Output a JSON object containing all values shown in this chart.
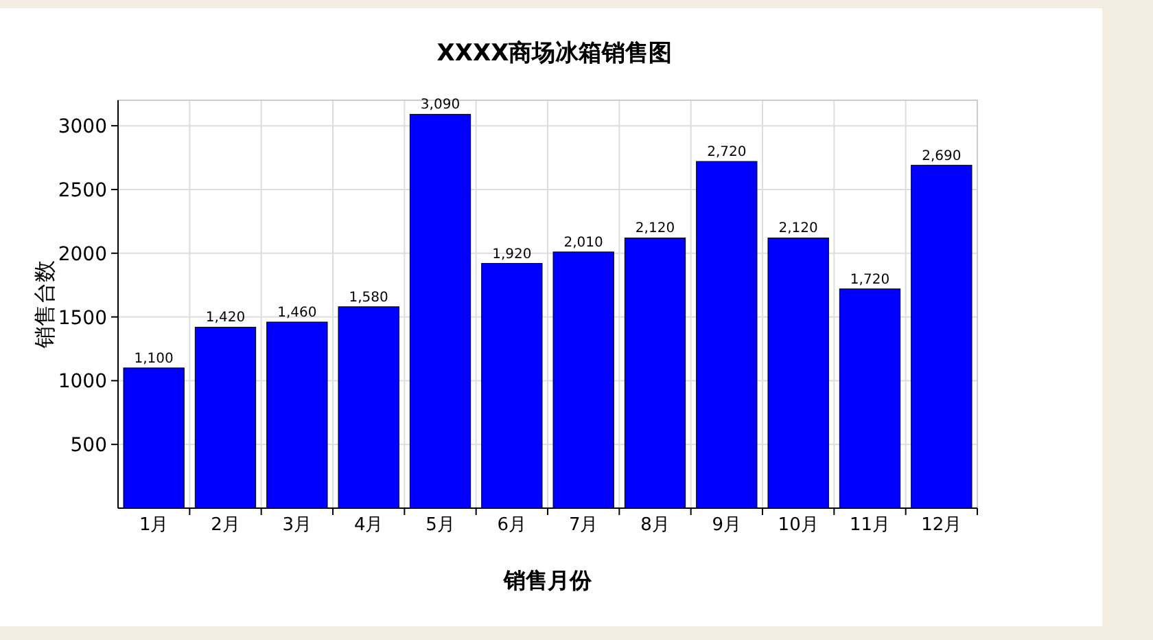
{
  "chart_data": {
    "type": "bar",
    "title": "XXXX商场冰箱销售图",
    "xlabel": "销售月份",
    "ylabel": "销售台数",
    "categories": [
      "1月",
      "2月",
      "3月",
      "4月",
      "5月",
      "6月",
      "7月",
      "8月",
      "9月",
      "10月",
      "11月",
      "12月"
    ],
    "values": [
      1100,
      1420,
      1460,
      1580,
      3090,
      1920,
      2010,
      2120,
      2720,
      2120,
      1720,
      2690
    ],
    "value_labels": [
      "1,100",
      "1,420",
      "1,460",
      "1,580",
      "3,090",
      "1,920",
      "2,010",
      "2,120",
      "2,720",
      "2,120",
      "1,720",
      "2,690"
    ],
    "color": "#0000ff",
    "grid": true,
    "ylim": [
      0,
      3200
    ],
    "yticks": [
      500,
      1000,
      1500,
      2000,
      2500,
      3000
    ]
  }
}
